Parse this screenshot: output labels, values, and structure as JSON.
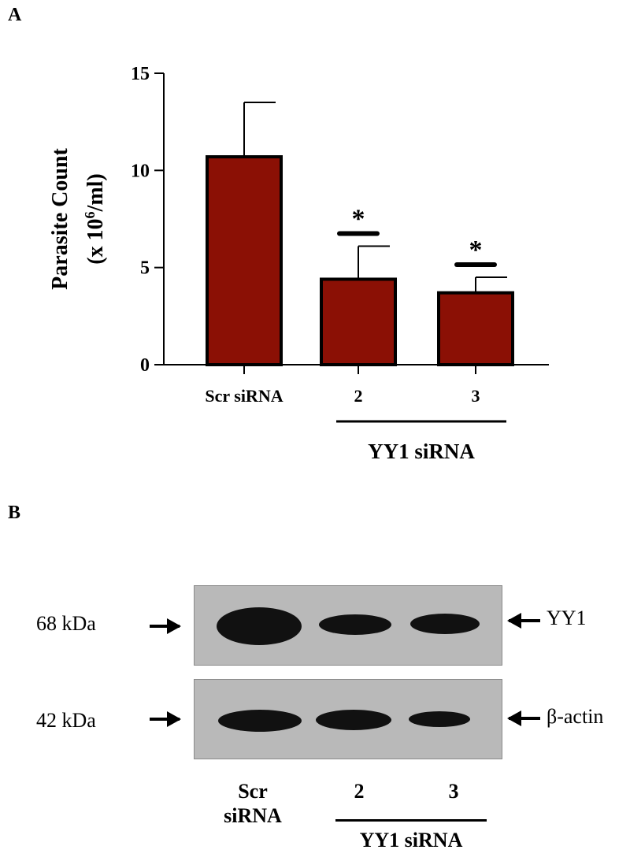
{
  "panelA": {
    "letter": "A"
  },
  "panelB": {
    "letter": "B"
  },
  "chart_data": {
    "type": "bar",
    "categories": [
      "Scr siRNA",
      "2",
      "3"
    ],
    "values": [
      10.7,
      4.4,
      3.7
    ],
    "errors": [
      2.8,
      1.7,
      0.8
    ],
    "significance": [
      "",
      "*",
      "*"
    ],
    "ylabel_line1": "Parasite Count",
    "ylabel_line2_prefix": "(x 10",
    "ylabel_line2_sup": "6",
    "ylabel_line2_suffix": "/ml)",
    "xlabel": "",
    "group_label": "YY1 siRNA",
    "ylim": [
      0,
      15
    ],
    "yticks": [
      0,
      5,
      10,
      15
    ],
    "bar_color": "#8b1005",
    "grid": false
  },
  "blot": {
    "rows": [
      {
        "marker": "68 kDa",
        "protein": "YY1",
        "band_intensity": [
          1.0,
          0.55,
          0.6
        ]
      },
      {
        "marker": "42 kDa",
        "protein": "β-actin",
        "band_intensity": [
          0.85,
          0.7,
          0.45
        ]
      }
    ],
    "lanes": {
      "scr_line1": "Scr",
      "scr_line2": "siRNA",
      "lane2": "2",
      "lane3": "3"
    },
    "group_label": "YY1 siRNA"
  }
}
